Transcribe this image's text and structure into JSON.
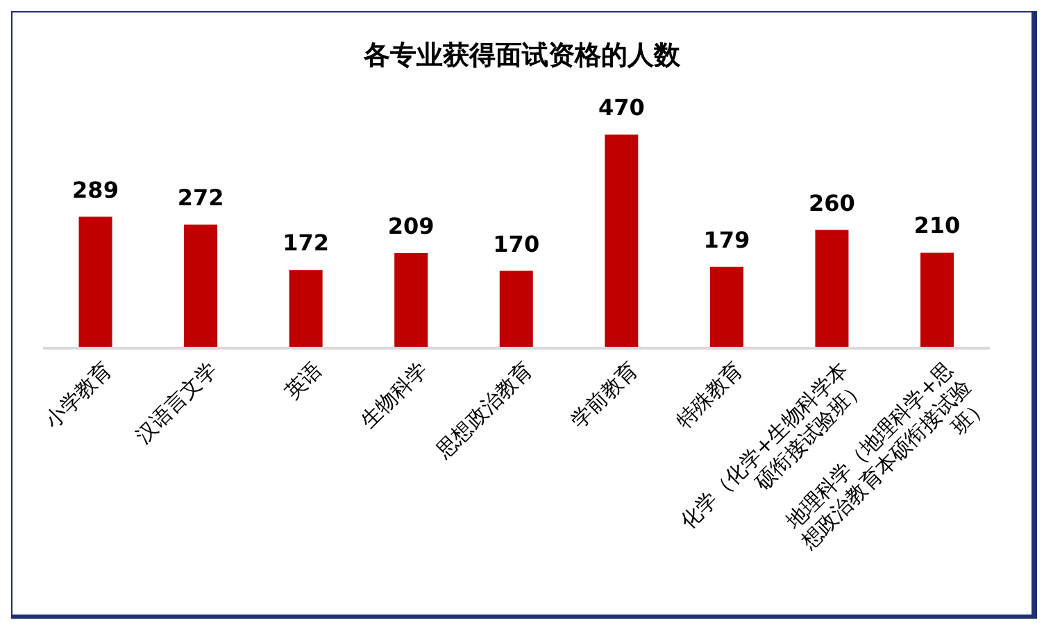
{
  "chart_data": {
    "type": "bar",
    "title": "各专业获得面试资格的人数",
    "categories": [
      "小学教育",
      "汉语言文学",
      "英语",
      "生物科学",
      "思想政治教育",
      "学前教育",
      "特殊教育",
      "化学（化学+生物科学本硕衔接试验班）",
      "地理科学（地理科学+思想政治教育本硕衔接试验班）"
    ],
    "values": [
      289,
      272,
      172,
      209,
      170,
      470,
      179,
      260,
      210
    ],
    "color": "#c00000",
    "data_labels": true,
    "grid": false,
    "legend": false,
    "tick_labels": "x"
  }
}
